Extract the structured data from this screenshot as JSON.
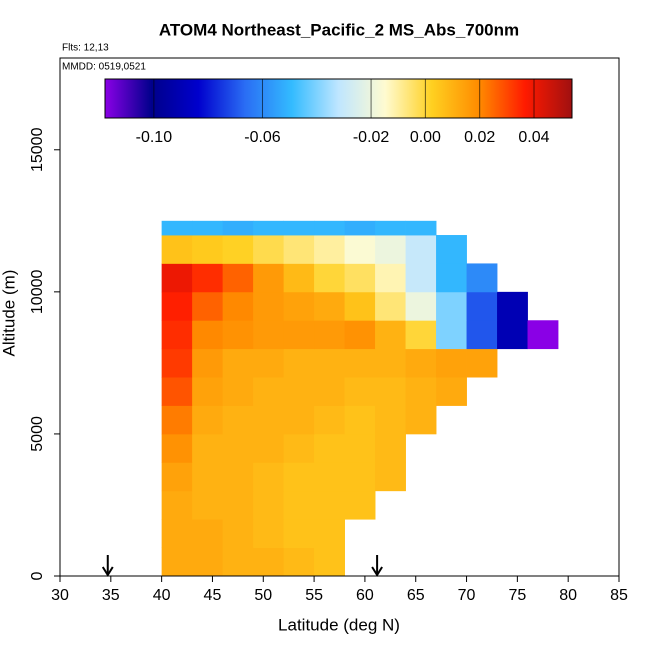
{
  "chart_data": {
    "type": "heatmap",
    "title": "ATOM4 Northeast_Pacific_2 MS_Abs_700nm",
    "annotations": [
      "Flts: 12,13",
      "MMDD: 0519,0521"
    ],
    "x_label": "Latitude (deg N)",
    "y_label": "Altitude (m)",
    "xlim": [
      30,
      85
    ],
    "xticks": [
      30,
      35,
      40,
      45,
      50,
      55,
      60,
      65,
      70,
      75,
      80,
      85
    ],
    "ylim": [
      0,
      18230
    ],
    "yticks": [
      0,
      5000,
      10000,
      15000
    ],
    "x_bins": [
      40,
      43,
      46,
      49,
      52,
      55,
      58,
      61,
      64,
      67,
      70,
      73,
      76,
      79
    ],
    "y_bins": [
      0,
      1000,
      2000,
      3000,
      4000,
      5000,
      6000,
      7000,
      8000,
      9000,
      10000,
      11000,
      12000,
      12500
    ],
    "z": [
      [
        0.012,
        0.012,
        0.01,
        0.01,
        0.008,
        0.006,
        null,
        null,
        null,
        null,
        null,
        null,
        null
      ],
      [
        0.012,
        0.012,
        0.01,
        0.008,
        0.006,
        0.006,
        null,
        null,
        null,
        null,
        null,
        null,
        null
      ],
      [
        0.012,
        0.01,
        0.01,
        0.008,
        0.006,
        0.006,
        0.006,
        null,
        null,
        null,
        null,
        null,
        null
      ],
      [
        0.014,
        0.01,
        0.01,
        0.008,
        0.006,
        0.006,
        0.006,
        0.008,
        null,
        null,
        null,
        null,
        null
      ],
      [
        0.018,
        0.01,
        0.01,
        0.01,
        0.008,
        0.006,
        0.006,
        0.008,
        null,
        null,
        null,
        null,
        null
      ],
      [
        0.022,
        0.012,
        0.01,
        0.01,
        0.01,
        0.008,
        0.006,
        0.008,
        0.01,
        null,
        null,
        null,
        null
      ],
      [
        0.028,
        0.014,
        0.012,
        0.01,
        0.01,
        0.01,
        0.008,
        0.008,
        0.01,
        0.012,
        null,
        null,
        null
      ],
      [
        0.032,
        0.016,
        0.012,
        0.012,
        0.01,
        0.01,
        0.01,
        0.01,
        0.012,
        0.014,
        0.014,
        null,
        null
      ],
      [
        0.034,
        0.02,
        0.018,
        0.016,
        0.016,
        0.016,
        0.018,
        0.01,
        0.0,
        -0.04,
        -0.07,
        -0.09,
        -0.12
      ],
      [
        0.036,
        0.026,
        0.02,
        0.016,
        0.014,
        0.012,
        0.006,
        -0.006,
        -0.02,
        -0.04,
        -0.07,
        -0.09,
        null
      ],
      [
        0.04,
        0.034,
        0.026,
        0.016,
        0.008,
        0.0,
        -0.004,
        -0.012,
        -0.03,
        -0.05,
        -0.06,
        null,
        null
      ],
      [
        0.006,
        0.004,
        0.002,
        -0.002,
        -0.006,
        -0.01,
        -0.016,
        -0.02,
        -0.03,
        -0.05,
        null,
        null,
        null
      ],
      [
        -0.05,
        -0.05,
        -0.052,
        -0.05,
        -0.05,
        -0.05,
        -0.052,
        -0.05,
        -0.05,
        null,
        null,
        null,
        null
      ]
    ],
    "zlim": [
      -0.118,
      0.054
    ],
    "zticks": [
      {
        "value": -0.1,
        "label": "-0.10"
      },
      {
        "value": -0.06,
        "label": "-0.06"
      },
      {
        "value": -0.02,
        "label": "-0.02"
      },
      {
        "value": 0,
        "label": "0.00"
      },
      {
        "value": 0.02,
        "label": "0.02"
      },
      {
        "value": 0.04,
        "label": "0.04"
      }
    ],
    "colorscale": [
      "#8a00e6",
      "#00008b",
      "#0000cd",
      "#2a6df4",
      "#33bbff",
      "#bfe6ff",
      "#fffbd0",
      "#ffd020",
      "#ff8c00",
      "#ff1a00",
      "#a01010"
    ],
    "markers_x": [
      34.7,
      61.2
    ]
  }
}
